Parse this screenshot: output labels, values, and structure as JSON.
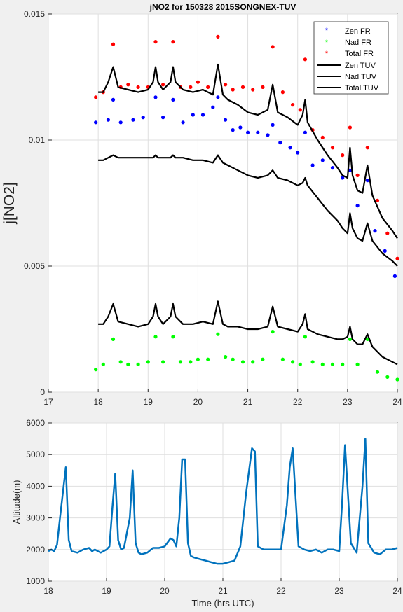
{
  "chart_data": [
    {
      "type": "scatter",
      "title": "jNO2 for 150328 2015SONGNEX-TUV",
      "xlabel": "",
      "ylabel": "j[NO2]",
      "xlim": [
        17,
        24
      ],
      "ylim": [
        0,
        0.015
      ],
      "x_ticks": [
        17,
        18,
        19,
        20,
        21,
        22,
        23,
        24
      ],
      "x_tick_labels": [
        "17",
        "18",
        "19",
        "20",
        "21",
        "22",
        "23",
        "24"
      ],
      "y_ticks": [
        0,
        0.005,
        0.01,
        0.015
      ],
      "y_tick_labels": [
        "0",
        "0.005",
        "0.01",
        "0.015"
      ],
      "grid": true,
      "legend_position": "top-right",
      "series": [
        {
          "name": "Zen FR",
          "style": "markers",
          "color": "#0000ff",
          "x": [
            17.95,
            18.2,
            18.3,
            18.45,
            18.7,
            18.9,
            19.15,
            19.3,
            19.5,
            19.7,
            19.9,
            20.1,
            20.3,
            20.4,
            20.55,
            20.7,
            20.85,
            21.0,
            21.2,
            21.4,
            21.5,
            21.65,
            21.85,
            22.0,
            22.15,
            22.3,
            22.5,
            22.7,
            22.9,
            23.05,
            23.2,
            23.4,
            23.55,
            23.75,
            23.95
          ],
          "y": [
            0.0107,
            0.0108,
            0.0116,
            0.0107,
            0.0108,
            0.0109,
            0.0117,
            0.0109,
            0.0116,
            0.0107,
            0.011,
            0.011,
            0.0113,
            0.0117,
            0.0108,
            0.0104,
            0.0105,
            0.0103,
            0.0103,
            0.0102,
            0.0106,
            0.0099,
            0.0097,
            0.0095,
            0.0103,
            0.009,
            0.0092,
            0.0089,
            0.0085,
            0.0088,
            0.0074,
            0.0084,
            0.0064,
            0.0056,
            0.0046
          ]
        },
        {
          "name": "Nad FR",
          "style": "markers",
          "color": "#00ff00",
          "x": [
            17.95,
            18.1,
            18.3,
            18.45,
            18.6,
            18.8,
            19.0,
            19.15,
            19.3,
            19.5,
            19.65,
            19.85,
            20.0,
            20.2,
            20.4,
            20.55,
            20.7,
            20.9,
            21.1,
            21.3,
            21.5,
            21.7,
            21.9,
            22.05,
            22.15,
            22.3,
            22.5,
            22.7,
            22.9,
            23.05,
            23.2,
            23.4,
            23.6,
            23.8,
            24.0
          ],
          "y": [
            0.0009,
            0.0011,
            0.0021,
            0.0012,
            0.0011,
            0.0011,
            0.0012,
            0.0022,
            0.0012,
            0.0022,
            0.0012,
            0.0012,
            0.0013,
            0.0013,
            0.0023,
            0.0014,
            0.0013,
            0.0012,
            0.0012,
            0.0013,
            0.0024,
            0.0013,
            0.0012,
            0.0011,
            0.0022,
            0.0012,
            0.0011,
            0.0011,
            0.0011,
            0.0021,
            0.0011,
            0.0021,
            0.0008,
            0.0006,
            0.0005
          ]
        },
        {
          "name": "Total FR",
          "style": "markers",
          "color": "#ff0000",
          "x": [
            17.95,
            18.1,
            18.3,
            18.45,
            18.6,
            18.8,
            19.0,
            19.15,
            19.3,
            19.5,
            19.65,
            19.85,
            20.0,
            20.2,
            20.4,
            20.55,
            20.7,
            20.9,
            21.1,
            21.3,
            21.5,
            21.7,
            21.9,
            22.05,
            22.15,
            22.3,
            22.5,
            22.7,
            22.9,
            23.05,
            23.2,
            23.4,
            23.6,
            23.8,
            24.0
          ],
          "y": [
            0.0117,
            0.0119,
            0.0138,
            0.0121,
            0.0122,
            0.0121,
            0.0121,
            0.0139,
            0.0122,
            0.0139,
            0.0121,
            0.0121,
            0.0123,
            0.0121,
            0.0141,
            0.0122,
            0.012,
            0.0121,
            0.012,
            0.0121,
            0.0137,
            0.0119,
            0.0114,
            0.0112,
            0.0132,
            0.0104,
            0.0101,
            0.0097,
            0.0094,
            0.0105,
            0.0086,
            0.0097,
            0.0076,
            0.0063,
            0.0053
          ]
        },
        {
          "name": "Zen TUV",
          "style": "line",
          "color": "#000000",
          "x": [
            18.0,
            18.1,
            18.2,
            18.3,
            18.4,
            18.6,
            18.8,
            19.0,
            19.1,
            19.15,
            19.2,
            19.3,
            19.45,
            19.5,
            19.55,
            19.7,
            19.9,
            20.1,
            20.3,
            20.4,
            20.5,
            20.6,
            20.8,
            21.0,
            21.2,
            21.4,
            21.5,
            21.6,
            21.8,
            22.0,
            22.1,
            22.15,
            22.2,
            22.4,
            22.6,
            22.8,
            22.9,
            23.0,
            23.05,
            23.1,
            23.2,
            23.3,
            23.4,
            23.5,
            23.7,
            23.9,
            24.0
          ],
          "y": [
            0.0092,
            0.0092,
            0.0093,
            0.0094,
            0.0093,
            0.0093,
            0.0093,
            0.0093,
            0.0093,
            0.0094,
            0.0093,
            0.0093,
            0.0093,
            0.0094,
            0.0093,
            0.0093,
            0.0092,
            0.0092,
            0.0091,
            0.0094,
            0.0091,
            0.009,
            0.0088,
            0.0086,
            0.0085,
            0.0086,
            0.0088,
            0.0085,
            0.0084,
            0.0082,
            0.0083,
            0.0085,
            0.0082,
            0.0077,
            0.0072,
            0.0068,
            0.0065,
            0.0063,
            0.0071,
            0.0065,
            0.0061,
            0.006,
            0.0067,
            0.006,
            0.0055,
            0.0052,
            0.005
          ]
        },
        {
          "name": "Nad TUV",
          "style": "line",
          "color": "#000000",
          "x": [
            18.0,
            18.1,
            18.2,
            18.3,
            18.4,
            18.6,
            18.8,
            19.0,
            19.1,
            19.15,
            19.2,
            19.3,
            19.45,
            19.5,
            19.55,
            19.7,
            19.9,
            20.1,
            20.3,
            20.4,
            20.5,
            20.6,
            20.8,
            21.0,
            21.2,
            21.4,
            21.5,
            21.6,
            21.8,
            22.0,
            22.1,
            22.15,
            22.2,
            22.4,
            22.6,
            22.8,
            22.9,
            23.0,
            23.05,
            23.1,
            23.2,
            23.3,
            23.4,
            23.5,
            23.7,
            23.9,
            24.0
          ],
          "y": [
            0.0027,
            0.0027,
            0.003,
            0.0035,
            0.0028,
            0.0027,
            0.0026,
            0.0027,
            0.003,
            0.0035,
            0.003,
            0.0027,
            0.003,
            0.0035,
            0.003,
            0.0027,
            0.0027,
            0.0028,
            0.0027,
            0.0036,
            0.0027,
            0.0026,
            0.0026,
            0.0025,
            0.0025,
            0.0026,
            0.0034,
            0.0026,
            0.0025,
            0.0024,
            0.0027,
            0.0031,
            0.0025,
            0.0023,
            0.0022,
            0.0021,
            0.0021,
            0.0022,
            0.0026,
            0.0021,
            0.0019,
            0.0019,
            0.0023,
            0.0018,
            0.0014,
            0.0012,
            0.0011
          ]
        },
        {
          "name": "Total TUV",
          "style": "line",
          "color": "#000000",
          "x": [
            18.0,
            18.1,
            18.2,
            18.3,
            18.4,
            18.6,
            18.8,
            19.0,
            19.1,
            19.15,
            19.2,
            19.3,
            19.45,
            19.5,
            19.55,
            19.7,
            19.9,
            20.1,
            20.3,
            20.4,
            20.5,
            20.6,
            20.8,
            21.0,
            21.2,
            21.4,
            21.5,
            21.6,
            21.8,
            22.0,
            22.1,
            22.15,
            22.2,
            22.4,
            22.6,
            22.8,
            22.9,
            23.0,
            23.05,
            23.1,
            23.2,
            23.3,
            23.4,
            23.5,
            23.7,
            23.9,
            24.0
          ],
          "y": [
            0.0119,
            0.0119,
            0.0123,
            0.0129,
            0.0121,
            0.012,
            0.0119,
            0.012,
            0.0123,
            0.0129,
            0.0123,
            0.012,
            0.0123,
            0.0129,
            0.0123,
            0.012,
            0.0119,
            0.012,
            0.0118,
            0.013,
            0.0118,
            0.0116,
            0.0114,
            0.0111,
            0.011,
            0.0112,
            0.0122,
            0.0111,
            0.0109,
            0.0106,
            0.011,
            0.0116,
            0.0107,
            0.01,
            0.0094,
            0.0089,
            0.0086,
            0.0085,
            0.0097,
            0.0086,
            0.008,
            0.0079,
            0.009,
            0.0078,
            0.0069,
            0.0064,
            0.0061
          ]
        }
      ]
    },
    {
      "type": "line",
      "title": "",
      "xlabel": "Time (hrs UTC)",
      "ylabel": "Altitude(m)",
      "xlim": [
        18,
        24
      ],
      "ylim": [
        1000,
        6000
      ],
      "x_ticks": [
        18,
        19,
        20,
        21,
        22,
        23,
        24
      ],
      "x_tick_labels": [
        "18",
        "19",
        "20",
        "21",
        "22",
        "23",
        "24"
      ],
      "y_ticks": [
        1000,
        2000,
        3000,
        4000,
        5000,
        6000
      ],
      "y_tick_labels": [
        "1000",
        "2000",
        "3000",
        "4000",
        "5000",
        "6000"
      ],
      "grid": true,
      "series": [
        {
          "color": "#0072bd",
          "x": [
            18.0,
            18.05,
            18.1,
            18.15,
            18.2,
            18.3,
            18.35,
            18.4,
            18.5,
            18.6,
            18.7,
            18.75,
            18.8,
            18.9,
            19.0,
            19.05,
            19.1,
            19.15,
            19.2,
            19.25,
            19.3,
            19.4,
            19.45,
            19.5,
            19.55,
            19.6,
            19.7,
            19.8,
            19.9,
            20.0,
            20.1,
            20.15,
            20.2,
            20.25,
            20.3,
            20.35,
            20.4,
            20.45,
            20.5,
            20.6,
            20.7,
            20.8,
            20.9,
            21.0,
            21.1,
            21.2,
            21.3,
            21.4,
            21.5,
            21.55,
            21.6,
            21.7,
            21.8,
            21.9,
            22.0,
            22.1,
            22.15,
            22.2,
            22.3,
            22.4,
            22.5,
            22.6,
            22.7,
            22.8,
            22.9,
            23.0,
            23.05,
            23.1,
            23.2,
            23.3,
            23.4,
            23.45,
            23.5,
            23.6,
            23.7,
            23.8,
            23.9,
            24.0
          ],
          "y": [
            1950,
            2000,
            1950,
            2150,
            3000,
            4600,
            2300,
            1950,
            1900,
            2000,
            2050,
            1950,
            2000,
            1900,
            2000,
            2100,
            3300,
            4400,
            2300,
            2000,
            2050,
            3000,
            4500,
            2200,
            1900,
            1850,
            1900,
            2050,
            2050,
            2100,
            2350,
            2300,
            2100,
            3000,
            4850,
            4850,
            2200,
            1800,
            1750,
            1700,
            1650,
            1600,
            1550,
            1550,
            1600,
            1650,
            2100,
            3800,
            5200,
            5100,
            2100,
            2000,
            2000,
            2000,
            2000,
            3400,
            4600,
            5200,
            2100,
            2000,
            1950,
            2000,
            1900,
            2000,
            2000,
            1950,
            3500,
            5300,
            2200,
            1900,
            4000,
            5500,
            2200,
            1900,
            1850,
            2000,
            2000,
            2050
          ]
        }
      ]
    }
  ]
}
